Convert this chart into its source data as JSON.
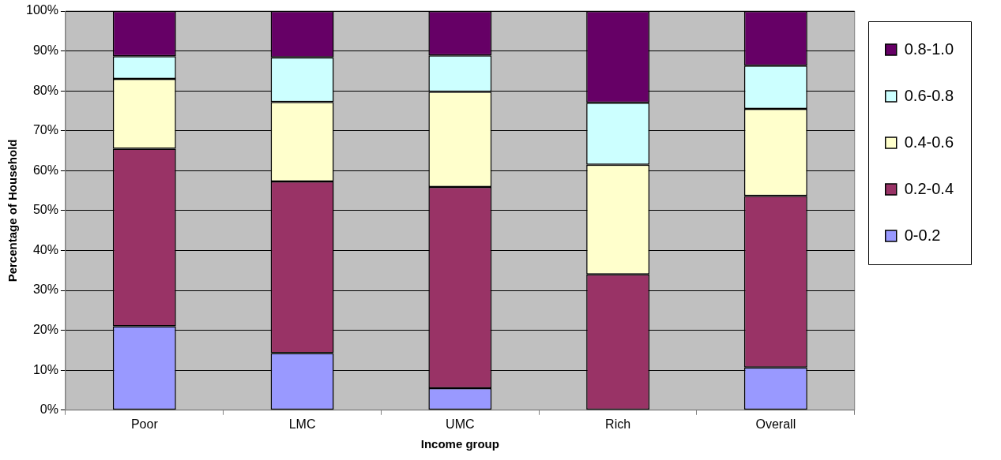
{
  "chart_data": {
    "type": "bar",
    "stacked": true,
    "xlabel": "Income group",
    "ylabel": "Percentage of Household",
    "categories": [
      "Poor",
      "LMC",
      "UMC",
      "Rich",
      "Overall"
    ],
    "series": [
      {
        "name": "0-0.2",
        "color": "#9999ff",
        "values": [
          21.0,
          14.3,
          5.5,
          0,
          10.7
        ]
      },
      {
        "name": "0.2-0.4",
        "color": "#993366",
        "values": [
          44.5,
          43.0,
          50.4,
          34.0,
          43.0
        ]
      },
      {
        "name": "0.4-0.6",
        "color": "#ffffcc",
        "values": [
          17.5,
          19.9,
          23.9,
          27.5,
          21.8
        ]
      },
      {
        "name": "0.6-0.8",
        "color": "#ccffff",
        "values": [
          5.7,
          11.2,
          9.1,
          15.5,
          10.8
        ]
      },
      {
        "name": "0.8-1.0",
        "color": "#660066",
        "values": [
          11.3,
          11.6,
          11.1,
          23.0,
          13.7
        ]
      }
    ],
    "ylim": [
      0,
      100
    ],
    "yticks": [
      {
        "value": 0,
        "label": "0%"
      },
      {
        "value": 10,
        "label": "10%"
      },
      {
        "value": 20,
        "label": "20%"
      },
      {
        "value": 30,
        "label": "30%"
      },
      {
        "value": 40,
        "label": "40%"
      },
      {
        "value": 50,
        "label": "50%"
      },
      {
        "value": 60,
        "label": "60%"
      },
      {
        "value": 70,
        "label": "70%"
      },
      {
        "value": 80,
        "label": "80%"
      },
      {
        "value": 90,
        "label": "90%"
      },
      {
        "value": 100,
        "label": "100%"
      }
    ],
    "grid": "y",
    "legend": "right"
  }
}
